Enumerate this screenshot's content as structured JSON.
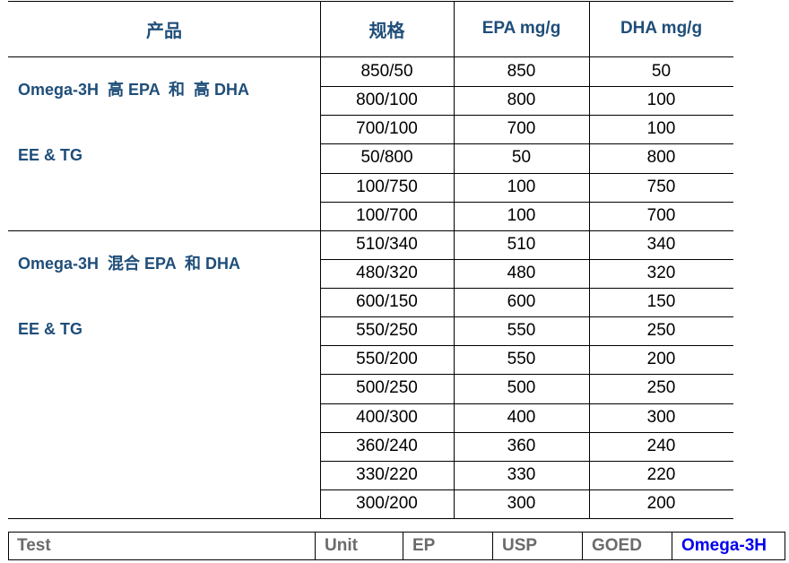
{
  "table": {
    "headers": [
      "产品",
      "规格",
      "EPA mg/g",
      "DHA mg/g"
    ],
    "groups": [
      {
        "product_line1": "Omega-3H  高 EPA  和  高 DHA",
        "product_line2": "EE & TG",
        "rows": [
          [
            "850/50",
            "850",
            "50"
          ],
          [
            "800/100",
            "800",
            "100"
          ],
          [
            "700/100",
            "700",
            "100"
          ],
          [
            "50/800",
            "50",
            "800"
          ],
          [
            "100/750",
            "100",
            "750"
          ],
          [
            "100/700",
            "100",
            "700"
          ]
        ]
      },
      {
        "product_line1": "Omega-3H  混合 EPA  和 DHA",
        "product_line2": "EE & TG",
        "rows": [
          [
            "510/340",
            "510",
            "340"
          ],
          [
            "480/320",
            "480",
            "320"
          ],
          [
            "600/150",
            "600",
            "150"
          ],
          [
            "550/250",
            "550",
            "250"
          ],
          [
            "550/200",
            "550",
            "200"
          ],
          [
            "500/250",
            "500",
            "250"
          ],
          [
            "400/300",
            "400",
            "300"
          ],
          [
            "360/240",
            "360",
            "240"
          ],
          [
            "330/220",
            "330",
            "220"
          ],
          [
            "300/200",
            "300",
            "200"
          ]
        ]
      }
    ]
  },
  "bottom_table": {
    "headers": [
      "Test",
      "Unit",
      "EP",
      "USP",
      "GOED",
      "Omega-3H"
    ]
  },
  "colors": {
    "header_text": "#1f4e79",
    "bottom_grey": "#6b6b6b",
    "brand_blue": "#0000ee"
  }
}
